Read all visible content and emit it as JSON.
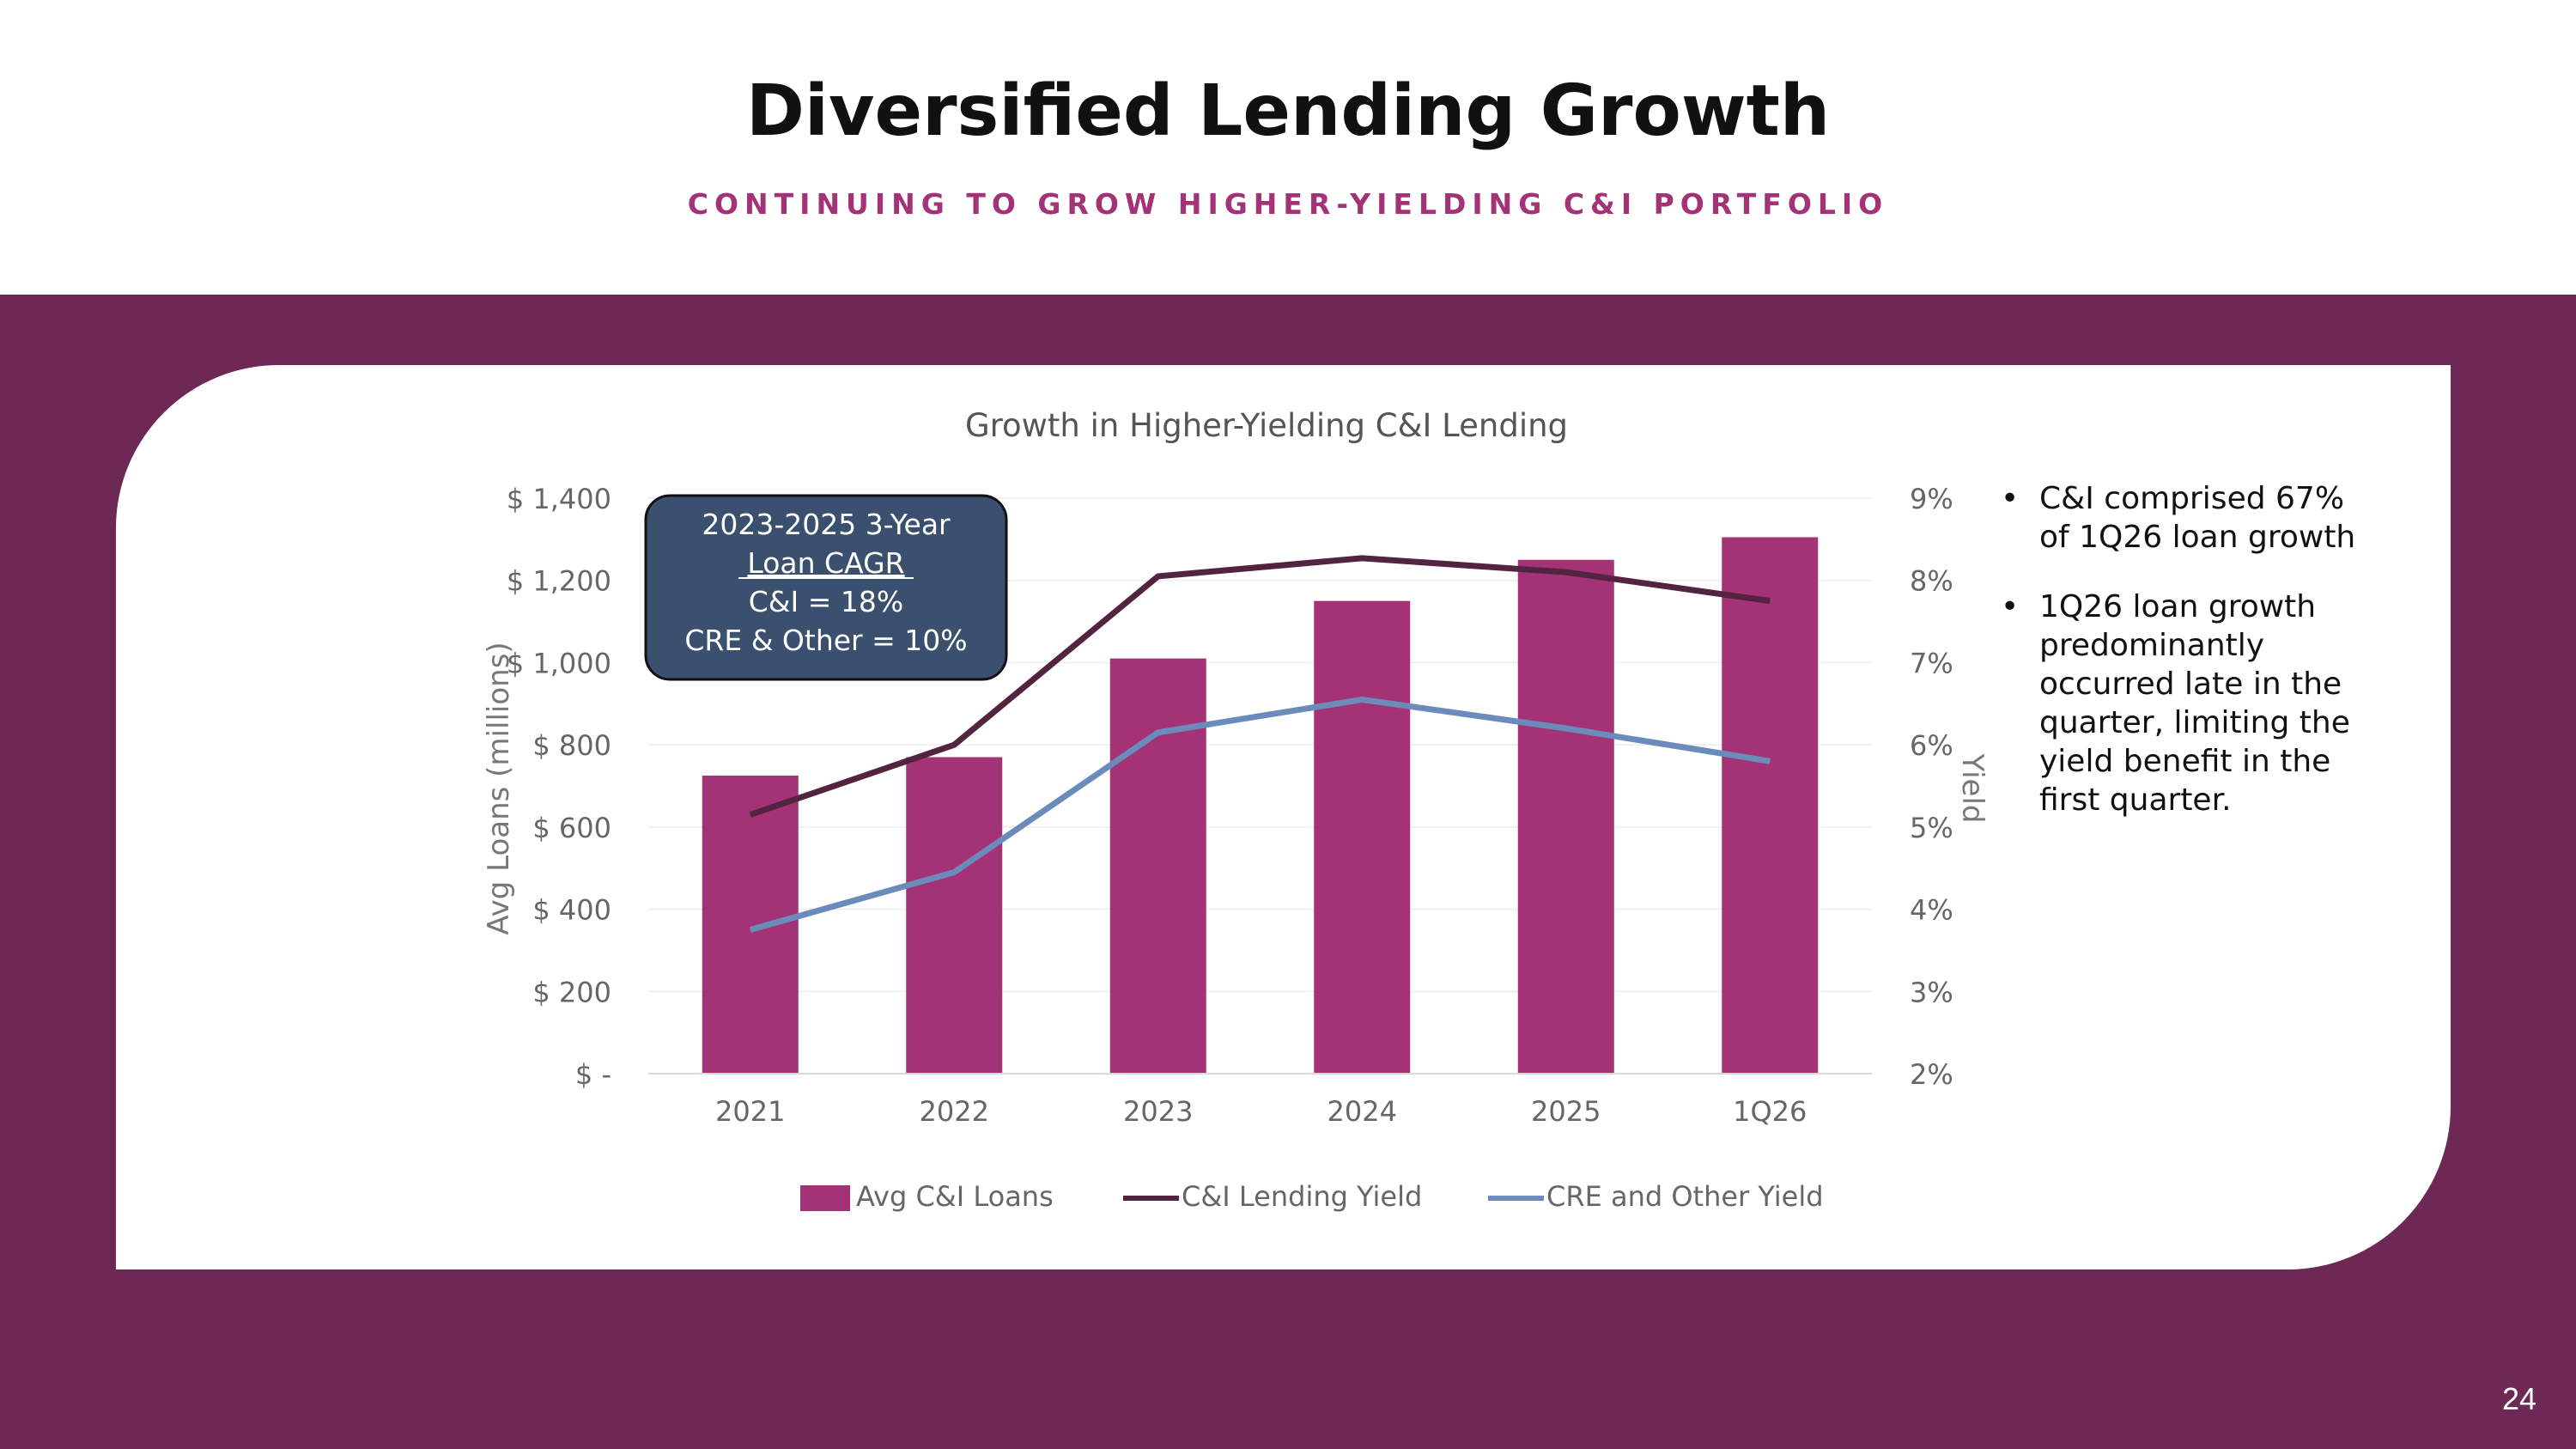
{
  "slide": {
    "title": "Diversified Lending Growth",
    "subtitle": "CONTINUING TO GROW HIGHER-YIELDING C&I PORTFOLIO",
    "page_number": "24"
  },
  "callout": {
    "line1": "2023-2025 3-Year",
    "line2": "Loan CAGR",
    "line3": "C&I = 18%",
    "line4": "CRE & Other = 10%"
  },
  "bullets": [
    "C&I comprised 67% of 1Q26 loan growth",
    "1Q26 loan growth predominantly occurred late in the quarter, limiting the yield benefit in the first quarter."
  ],
  "colors": {
    "band": "#6e2856",
    "subtitle": "#a33277",
    "bar": "#a33277",
    "ci_yield_line": "#522440",
    "cre_yield_line": "#6b8cba",
    "callout_fill": "#3b4f6e"
  },
  "chart_data": {
    "type": "bar",
    "title": "Growth in Higher-Yielding C&I Lending",
    "categories": [
      "2021",
      "2022",
      "2023",
      "2024",
      "2025",
      "1Q26"
    ],
    "ylabel": "Avg Loans (millions)",
    "y2label": "Yield",
    "ylim": [
      0,
      1400
    ],
    "y2lim": [
      2,
      9
    ],
    "y_ticks": [
      0,
      200,
      400,
      600,
      800,
      1000,
      1200,
      1400
    ],
    "y_tick_labels": [
      "$ -",
      "$ 200",
      "$ 400",
      "$ 600",
      "$ 800",
      "$ 1,000",
      "$ 1,200",
      "$ 1,400"
    ],
    "y2_ticks": [
      2,
      3,
      4,
      5,
      6,
      7,
      8,
      9
    ],
    "y2_tick_labels": [
      "2%",
      "3%",
      "4%",
      "5%",
      "6%",
      "7%",
      "8%",
      "9%"
    ],
    "grid": true,
    "legend_position": "bottom",
    "series": [
      {
        "name": "Avg C&I Loans",
        "type": "bar",
        "axis": "left",
        "color": "#a33277",
        "values": [
          725,
          770,
          1010,
          1150,
          1250,
          1305
        ]
      },
      {
        "name": "C&I Lending Yield",
        "type": "line",
        "axis": "right",
        "color": "#522440",
        "values": [
          5.15,
          6.0,
          8.05,
          8.27,
          8.1,
          7.75
        ]
      },
      {
        "name": "CRE and Other Yield",
        "type": "line",
        "axis": "right",
        "color": "#6b8cba",
        "values": [
          3.75,
          4.45,
          6.15,
          6.55,
          6.2,
          5.8
        ]
      }
    ]
  }
}
